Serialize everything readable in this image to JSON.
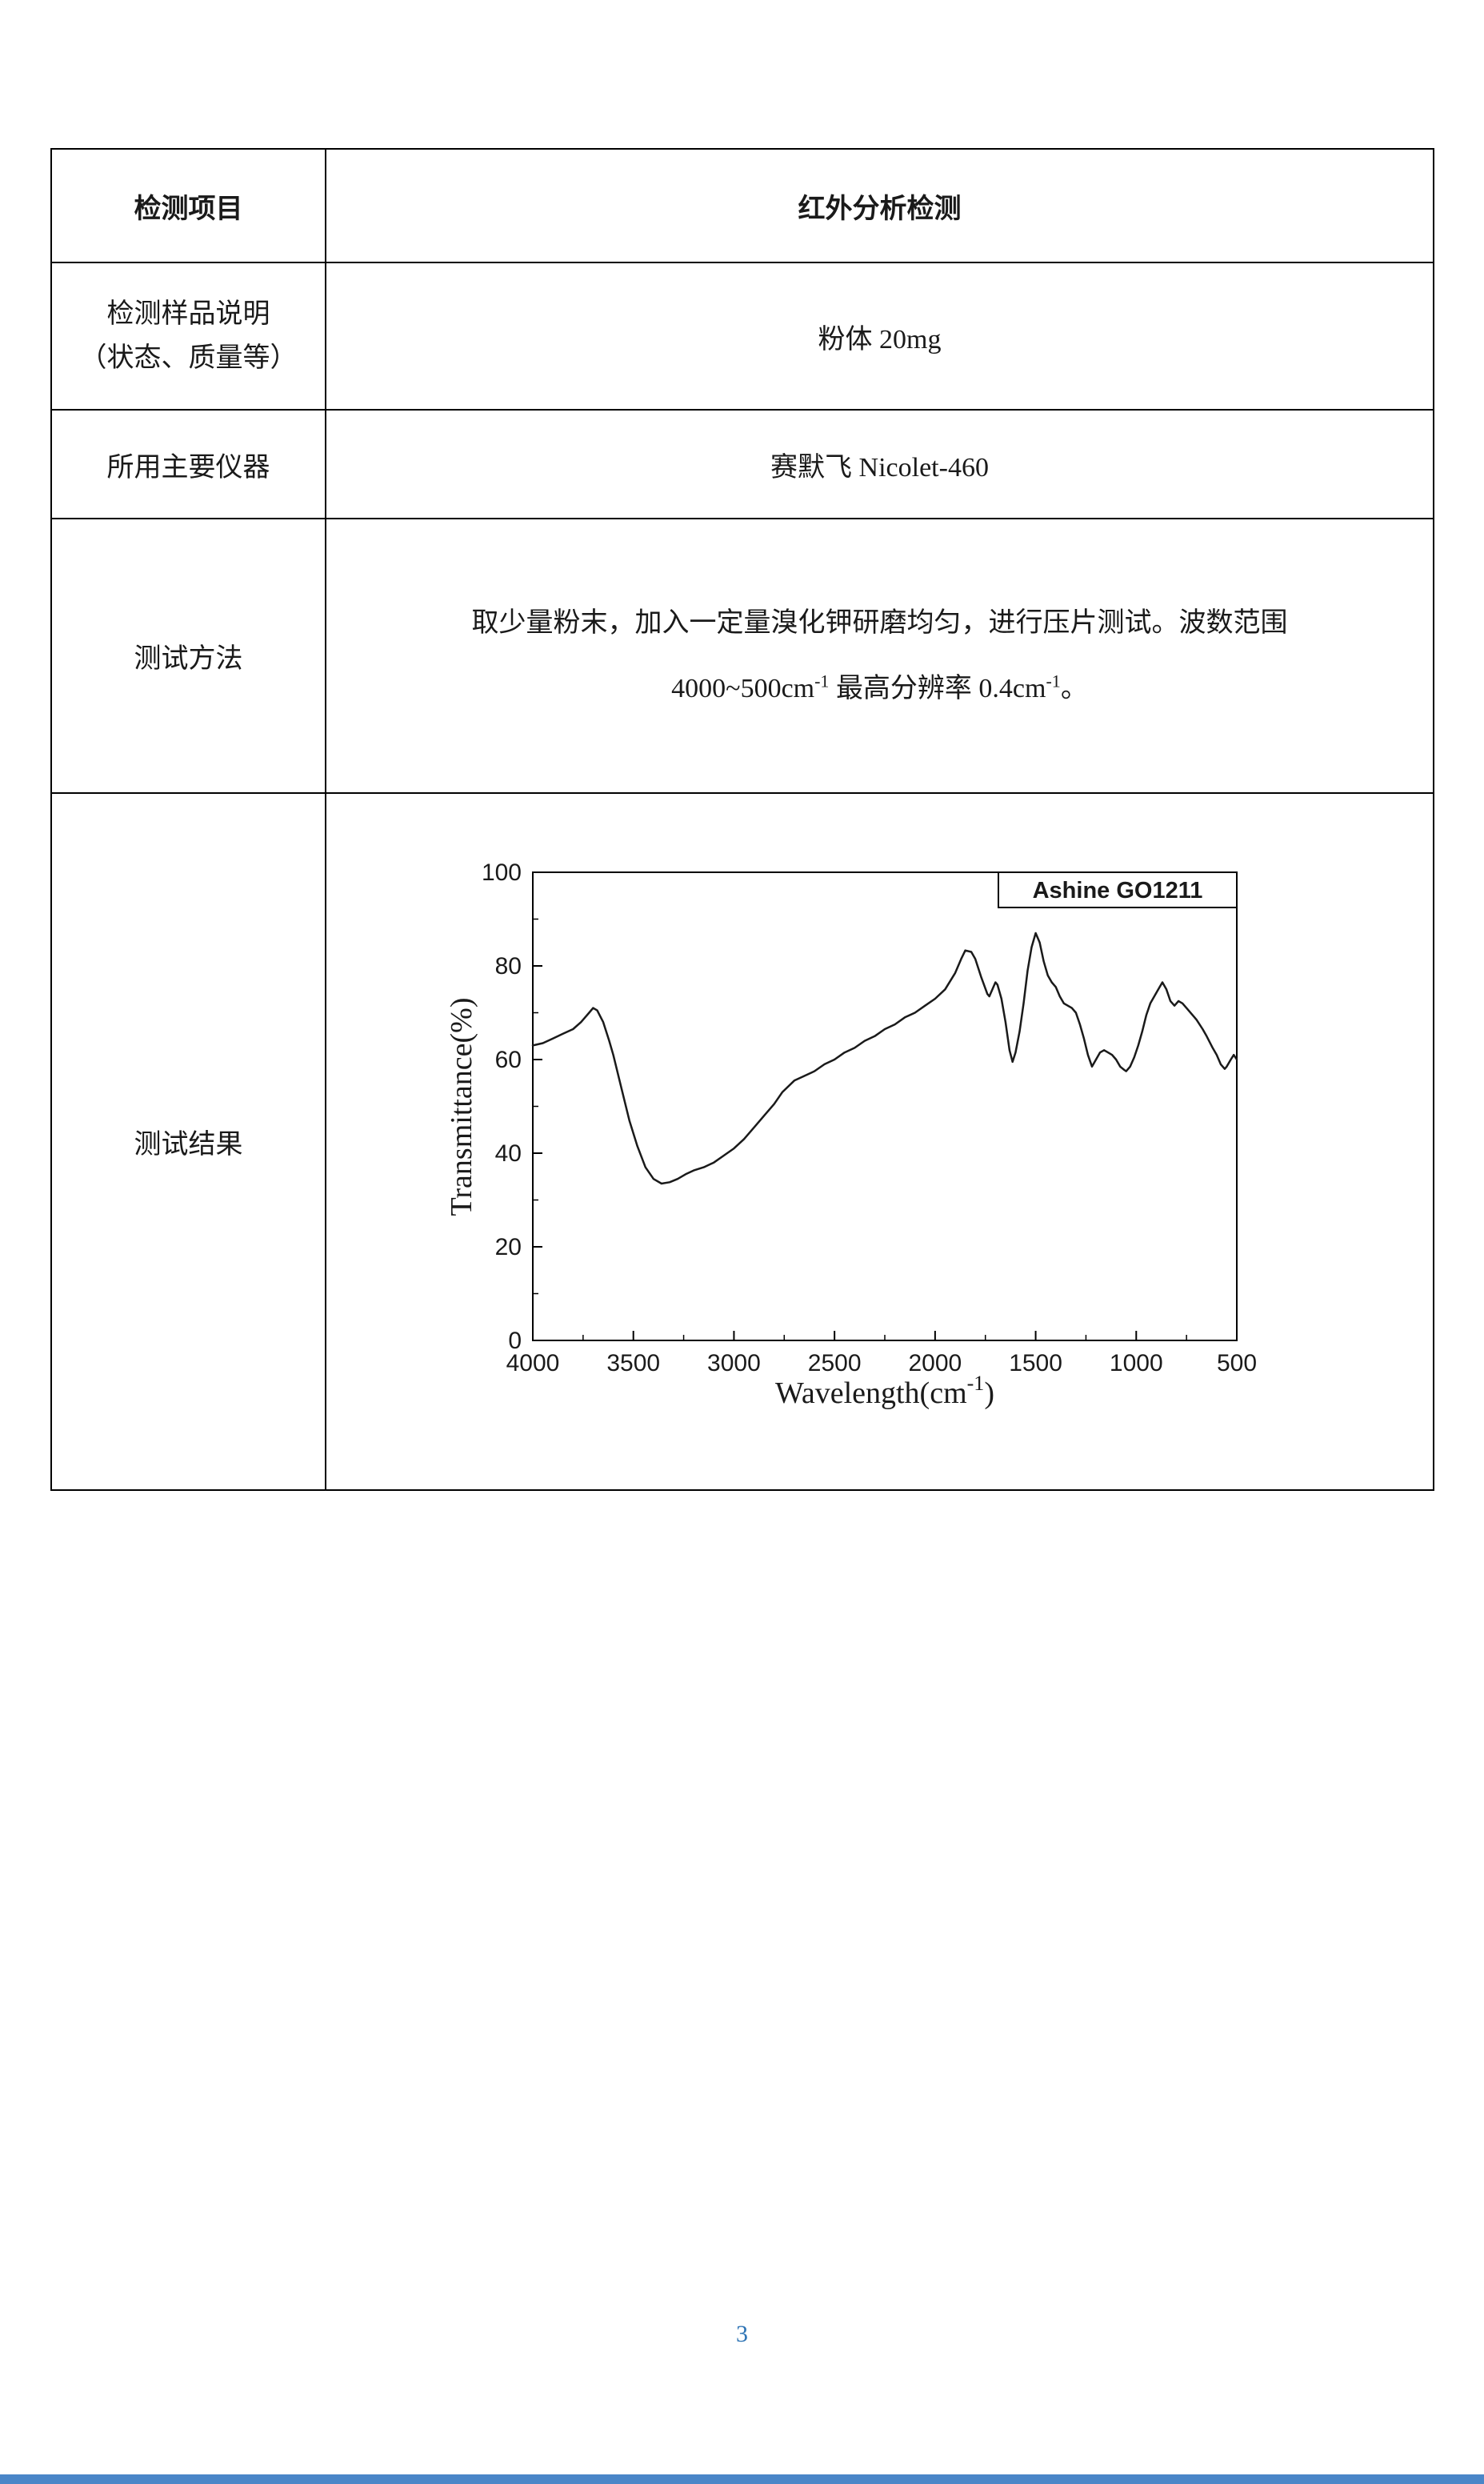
{
  "document": {
    "page_number": "3"
  },
  "table": {
    "row1": {
      "label": "检测项目",
      "value": "红外分析检测"
    },
    "row2": {
      "label_line1": "检测样品说明",
      "label_line2": "（状态、质量等）",
      "value": "粉体 20mg"
    },
    "row3": {
      "label": "所用主要仪器",
      "value": "赛默飞 Nicolet-460"
    },
    "row4": {
      "label": "测试方法",
      "line1": "取少量粉末，加入一定量溴化钾研磨均匀，进行压片测试。波数范围",
      "line2_seg1": "4000~500cm",
      "line2_sup1": "-1",
      "line2_seg2": " 最高分辨率 0.4cm",
      "line2_sup2": "-1",
      "line2_seg3": "。"
    },
    "row5": {
      "label": "测试结果"
    }
  },
  "chart_data": {
    "type": "line",
    "legend": "Ashine GO1211",
    "xlabel_main": "Wavelength(cm",
    "xlabel_sup": "-1",
    "xlabel_close": ")",
    "ylabel": "Transmittance(%)",
    "xlim": [
      4000,
      500
    ],
    "ylim": [
      0,
      100
    ],
    "x_reversed": true,
    "grid": false,
    "legend_position": "top-right-inside",
    "x_ticks": [
      4000,
      3500,
      3000,
      2500,
      2000,
      1500,
      1000,
      500
    ],
    "y_ticks": [
      0,
      20,
      40,
      60,
      80,
      100
    ],
    "line_color": "#1a1a1a",
    "points": [
      [
        4000,
        63
      ],
      [
        3950,
        63.5
      ],
      [
        3900,
        64.5
      ],
      [
        3850,
        65.5
      ],
      [
        3800,
        66.5
      ],
      [
        3760,
        68
      ],
      [
        3720,
        70
      ],
      [
        3700,
        71
      ],
      [
        3680,
        70.5
      ],
      [
        3650,
        68
      ],
      [
        3620,
        64
      ],
      [
        3600,
        61
      ],
      [
        3560,
        54
      ],
      [
        3520,
        47
      ],
      [
        3480,
        41.5
      ],
      [
        3440,
        37
      ],
      [
        3400,
        34.5
      ],
      [
        3360,
        33.5
      ],
      [
        3320,
        33.8
      ],
      [
        3280,
        34.5
      ],
      [
        3240,
        35.5
      ],
      [
        3200,
        36.3
      ],
      [
        3150,
        37
      ],
      [
        3100,
        38
      ],
      [
        3050,
        39.5
      ],
      [
        3000,
        41
      ],
      [
        2950,
        43
      ],
      [
        2900,
        45.5
      ],
      [
        2850,
        48
      ],
      [
        2800,
        50.5
      ],
      [
        2760,
        53
      ],
      [
        2700,
        55.5
      ],
      [
        2650,
        56.5
      ],
      [
        2600,
        57.5
      ],
      [
        2550,
        59
      ],
      [
        2500,
        60
      ],
      [
        2450,
        61.5
      ],
      [
        2400,
        62.5
      ],
      [
        2350,
        64
      ],
      [
        2300,
        65
      ],
      [
        2250,
        66.5
      ],
      [
        2200,
        67.5
      ],
      [
        2150,
        69
      ],
      [
        2100,
        70
      ],
      [
        2050,
        71.5
      ],
      [
        2000,
        73
      ],
      [
        1950,
        75
      ],
      [
        1900,
        78.5
      ],
      [
        1870,
        81.5
      ],
      [
        1850,
        83.3
      ],
      [
        1820,
        83
      ],
      [
        1800,
        81.5
      ],
      [
        1770,
        77.5
      ],
      [
        1740,
        74
      ],
      [
        1730,
        73.5
      ],
      [
        1710,
        75.5
      ],
      [
        1700,
        76.5
      ],
      [
        1690,
        76
      ],
      [
        1670,
        73
      ],
      [
        1650,
        68
      ],
      [
        1630,
        62
      ],
      [
        1615,
        59.5
      ],
      [
        1600,
        61.5
      ],
      [
        1580,
        66
      ],
      [
        1560,
        72
      ],
      [
        1540,
        79
      ],
      [
        1520,
        84
      ],
      [
        1500,
        87
      ],
      [
        1480,
        85
      ],
      [
        1460,
        81
      ],
      [
        1440,
        78
      ],
      [
        1420,
        76.5
      ],
      [
        1400,
        75.5
      ],
      [
        1380,
        73.5
      ],
      [
        1360,
        72
      ],
      [
        1340,
        71.5
      ],
      [
        1320,
        71
      ],
      [
        1300,
        70
      ],
      [
        1280,
        67.5
      ],
      [
        1260,
        64.5
      ],
      [
        1240,
        61
      ],
      [
        1220,
        58.5
      ],
      [
        1200,
        60
      ],
      [
        1180,
        61.5
      ],
      [
        1160,
        62
      ],
      [
        1140,
        61.5
      ],
      [
        1120,
        61
      ],
      [
        1100,
        60
      ],
      [
        1080,
        58.5
      ],
      [
        1060,
        57.8
      ],
      [
        1050,
        57.5
      ],
      [
        1030,
        58.5
      ],
      [
        1010,
        60.5
      ],
      [
        990,
        63
      ],
      [
        970,
        66
      ],
      [
        950,
        69.5
      ],
      [
        930,
        72
      ],
      [
        910,
        73.5
      ],
      [
        890,
        75
      ],
      [
        870,
        76.5
      ],
      [
        850,
        75
      ],
      [
        830,
        72.5
      ],
      [
        810,
        71.5
      ],
      [
        800,
        72
      ],
      [
        790,
        72.5
      ],
      [
        770,
        72
      ],
      [
        750,
        71
      ],
      [
        720,
        69.5
      ],
      [
        700,
        68.5
      ],
      [
        670,
        66.5
      ],
      [
        650,
        65
      ],
      [
        620,
        62.5
      ],
      [
        600,
        61
      ],
      [
        580,
        59
      ],
      [
        560,
        58
      ],
      [
        550,
        58.5
      ],
      [
        530,
        60
      ],
      [
        515,
        61
      ],
      [
        500,
        60
      ]
    ]
  }
}
